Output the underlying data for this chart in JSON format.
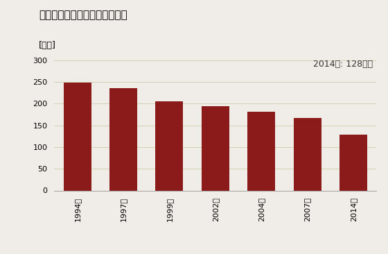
{
  "title": "小売業の年間商品販売額の推移",
  "ylabel": "[億円]",
  "annotation": "2014年: 128億円",
  "categories": [
    "1994年",
    "1997年",
    "1999年",
    "2002年",
    "2004年",
    "2007年",
    "2014年"
  ],
  "values": [
    248,
    236,
    205,
    194,
    181,
    167,
    128
  ],
  "bar_color": "#8B1A1A",
  "ylim": [
    0,
    310
  ],
  "yticks": [
    0,
    50,
    100,
    150,
    200,
    250,
    300
  ],
  "background_color": "#f0ede8",
  "plot_bg_color": "#f0ede8",
  "title_fontsize": 11,
  "label_fontsize": 9,
  "tick_fontsize": 8,
  "annotation_fontsize": 9
}
